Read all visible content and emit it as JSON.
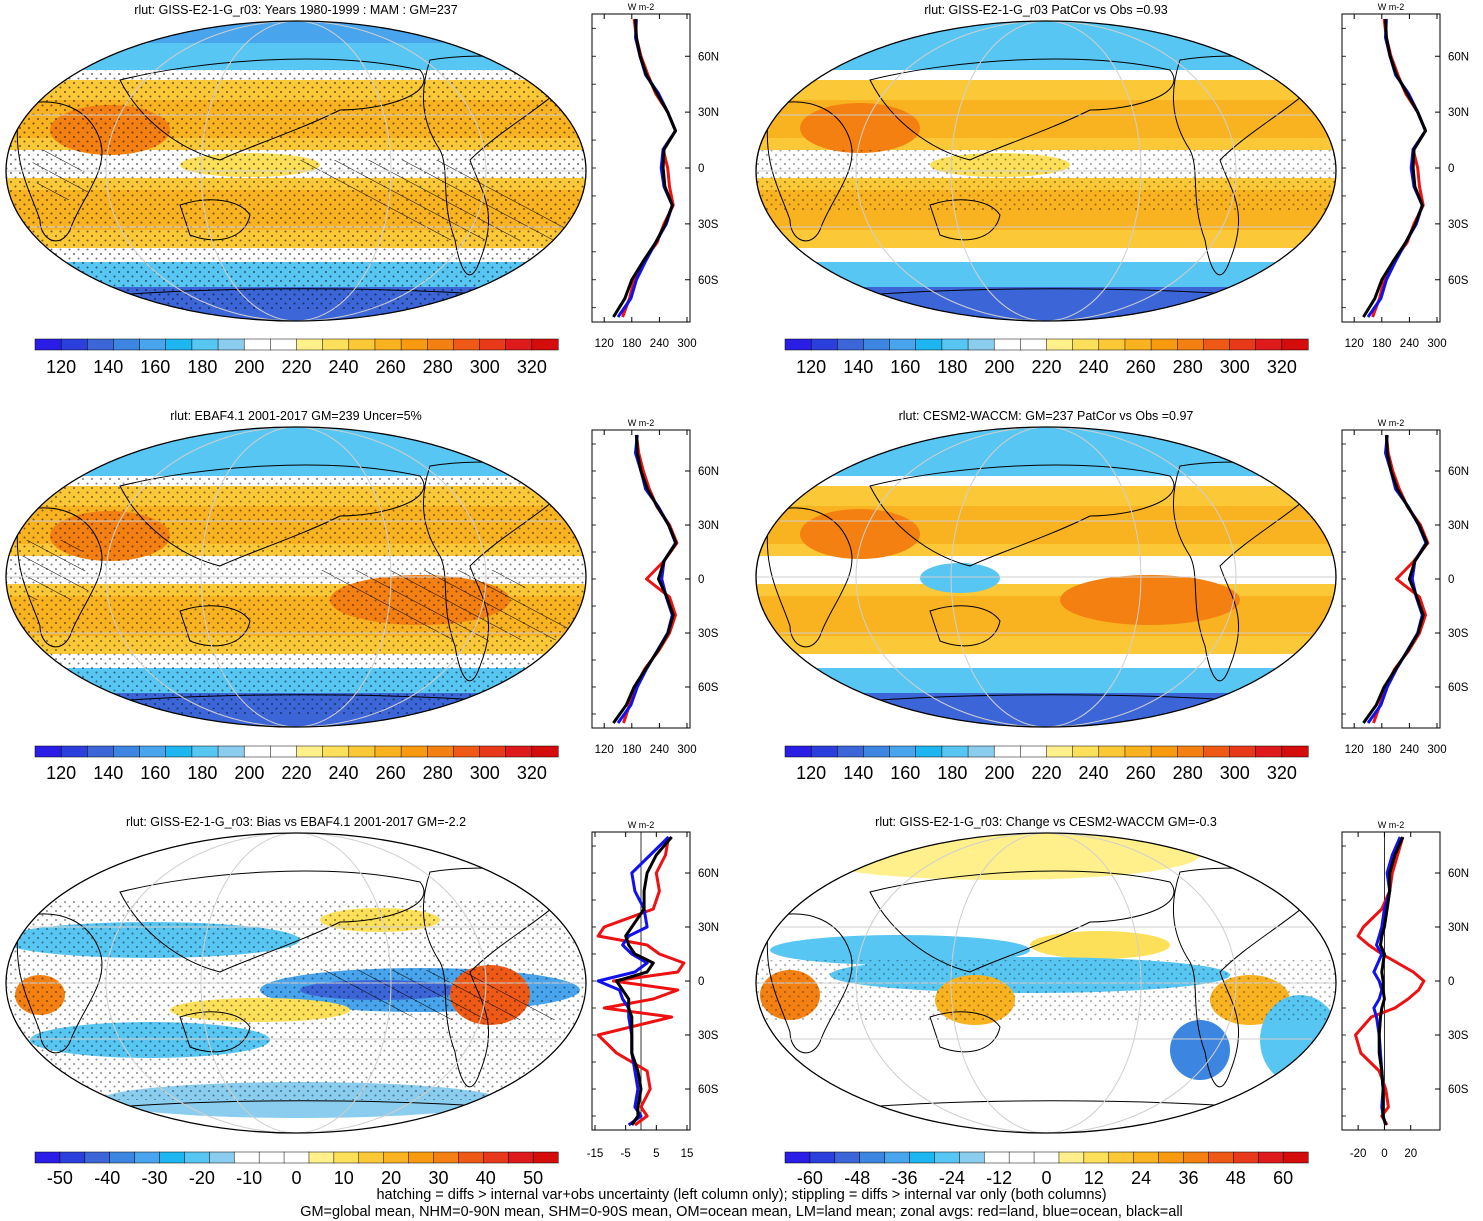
{
  "palettes": {
    "abs": [
      "#2a1ee6",
      "#2a3fdc",
      "#3c66d8",
      "#3c86e2",
      "#48a4ec",
      "#1eb6f0",
      "#58c6f2",
      "#8acdee",
      "#ffffff",
      "#ffffff",
      "#fff08c",
      "#fde05a",
      "#fbc837",
      "#f9b220",
      "#f79a0f",
      "#f38010",
      "#ee5a16",
      "#e83a1a",
      "#de1a1c",
      "#d40c0c"
    ],
    "diff": [
      "#2a1ee6",
      "#2a3fdc",
      "#3c66d8",
      "#3c86e2",
      "#48a4ec",
      "#1eb6f0",
      "#58c6f2",
      "#8acdee",
      "#ffffff",
      "#ffffff",
      "#ffffff",
      "#fff08c",
      "#fde05a",
      "#fbc837",
      "#f9b220",
      "#f79a0f",
      "#f38010",
      "#ee5a16",
      "#e83a1a",
      "#de1a1c",
      "#d40c0c"
    ]
  },
  "line_colors": {
    "land": "#ee1111",
    "ocean": "#1111ee",
    "all": "#000000"
  },
  "panels": [
    {
      "id": "p1",
      "title": "rlut: GISS-E2-1-G_r03: Years 1980-1999 : MAM : GM=237",
      "field": "abs",
      "palette": "abs",
      "colorbar_labels": [
        "120",
        "140",
        "160",
        "180",
        "200",
        "220",
        "240",
        "260",
        "280",
        "300",
        "320"
      ],
      "zonal_axis": {
        "unit": "W m-2",
        "ticks": [
          "120",
          "180",
          "240",
          "300"
        ],
        "range": [
          100,
          300
        ],
        "zero_line": false,
        "lat_labels": [
          "60N",
          "30N",
          "0",
          "30S",
          "60S"
        ]
      },
      "chart_data": {
        "type": "line",
        "x": [
          -80,
          -70,
          -60,
          -50,
          -40,
          -30,
          -20,
          -10,
          0,
          10,
          20,
          30,
          40,
          50,
          60,
          70,
          80
        ],
        "series": [
          {
            "name": "red=land",
            "values": [
              160,
              175,
              185,
              205,
              235,
              250,
              270,
              262,
              258,
              248,
              275,
              258,
              232,
              215,
              200,
              190,
              185
            ]
          },
          {
            "name": "blue=ocean",
            "values": [
              150,
              178,
              190,
              210,
              232,
              255,
              268,
              250,
              244,
              248,
              275,
              258,
              238,
              210,
              198,
              188,
              190
            ]
          },
          {
            "name": "black=all",
            "values": [
              140,
              165,
              180,
              205,
              232,
              253,
              268,
              252,
              248,
              250,
              275,
              258,
              235,
              212,
              198,
              190,
              188
            ]
          }
        ]
      }
    },
    {
      "id": "p2",
      "title": "rlut: GISS-E2-1-G_r03 PatCor vs Obs =0.93",
      "field": "abs",
      "palette": "abs",
      "colorbar_labels": [
        "120",
        "140",
        "160",
        "180",
        "200",
        "220",
        "240",
        "260",
        "280",
        "300",
        "320"
      ],
      "zonal_axis": {
        "unit": "W m-2",
        "ticks": [
          "120",
          "180",
          "240",
          "300"
        ],
        "range": [
          100,
          300
        ],
        "zero_line": false,
        "lat_labels": [
          "60N",
          "30N",
          "0",
          "30S",
          "60S"
        ]
      },
      "chart_data": {
        "type": "line",
        "x": [
          -80,
          -70,
          -60,
          -50,
          -40,
          -30,
          -20,
          -10,
          0,
          10,
          20,
          30,
          40,
          50,
          60,
          70,
          80
        ],
        "series": [
          {
            "name": "red=land",
            "values": [
              160,
              175,
              185,
              205,
              235,
              250,
              270,
              262,
              258,
              248,
              275,
              258,
              232,
              215,
              200,
              190,
              185
            ]
          },
          {
            "name": "blue=ocean",
            "values": [
              150,
              178,
              190,
              210,
              232,
              255,
              268,
              250,
              244,
              248,
              275,
              258,
              238,
              210,
              198,
              188,
              190
            ]
          },
          {
            "name": "black=all",
            "values": [
              140,
              165,
              180,
              205,
              232,
              253,
              268,
              252,
              248,
              250,
              275,
              258,
              235,
              212,
              198,
              190,
              188
            ]
          }
        ]
      }
    },
    {
      "id": "p3",
      "title": "rlut: EBAF4.1 2001-2017 GM=239 Uncer=5%",
      "field": "abs",
      "palette": "abs",
      "colorbar_labels": [
        "120",
        "140",
        "160",
        "180",
        "200",
        "220",
        "240",
        "260",
        "280",
        "300",
        "320"
      ],
      "zonal_axis": {
        "unit": "W m-2",
        "ticks": [
          "120",
          "180",
          "240",
          "300"
        ],
        "range": [
          100,
          300
        ],
        "zero_line": false,
        "lat_labels": [
          "60N",
          "30N",
          "0",
          "30S",
          "60S"
        ]
      },
      "chart_data": {
        "type": "line",
        "x": [
          -80,
          -70,
          -60,
          -50,
          -40,
          -30,
          -20,
          -10,
          0,
          10,
          20,
          30,
          40,
          50,
          60,
          70,
          80
        ],
        "series": [
          {
            "name": "red=land",
            "values": [
              162,
              175,
              188,
              208,
              238,
              262,
              275,
              262,
              212,
              250,
              278,
              262,
              235,
              218,
              205,
              195,
              190
            ]
          },
          {
            "name": "blue=ocean",
            "values": [
              150,
              178,
              192,
              212,
              235,
              258,
              268,
              255,
              245,
              250,
              275,
              260,
              238,
              210,
              200,
              188,
              192
            ]
          },
          {
            "name": "black=all",
            "values": [
              140,
              168,
              185,
              210,
              236,
              259,
              270,
              256,
              238,
              250,
              276,
              260,
              236,
              214,
              200,
              192,
              190
            ]
          }
        ]
      }
    },
    {
      "id": "p4",
      "title": "rlut: CESM2-WACCM: GM=237 PatCor vs Obs =0.97",
      "field": "abs",
      "palette": "abs",
      "colorbar_labels": [
        "120",
        "140",
        "160",
        "180",
        "200",
        "220",
        "240",
        "260",
        "280",
        "300",
        "320"
      ],
      "zonal_axis": {
        "unit": "W m-2",
        "ticks": [
          "120",
          "180",
          "240",
          "300"
        ],
        "range": [
          100,
          300
        ],
        "zero_line": false,
        "lat_labels": [
          "60N",
          "30N",
          "0",
          "30S",
          "60S"
        ]
      },
      "chart_data": {
        "type": "line",
        "x": [
          -80,
          -70,
          -60,
          -50,
          -40,
          -30,
          -20,
          -10,
          0,
          10,
          20,
          30,
          40,
          50,
          60,
          70,
          80
        ],
        "series": [
          {
            "name": "red=land",
            "values": [
              162,
              176,
              188,
              208,
              238,
              262,
              275,
              262,
              212,
              250,
              280,
              264,
              236,
              218,
              204,
              194,
              190
            ]
          },
          {
            "name": "blue=ocean",
            "values": [
              150,
              178,
              192,
              212,
              235,
              258,
              268,
              255,
              246,
              252,
              276,
              260,
              238,
              210,
              200,
              188,
              192
            ]
          },
          {
            "name": "black=all",
            "values": [
              140,
              168,
              185,
              210,
              236,
              259,
              270,
              256,
              240,
              252,
              278,
              261,
              237,
              214,
              200,
              192,
              190
            ]
          }
        ]
      }
    },
    {
      "id": "p5",
      "title": "rlut: GISS-E2-1-G_r03: Bias vs EBAF4.1 2001-2017 GM=-2.2",
      "field": "bias",
      "palette": "diff",
      "colorbar_labels": [
        "-50",
        "-40",
        "-30",
        "-20",
        "-10",
        "0",
        "10",
        "20",
        "30",
        "40",
        "50"
      ],
      "zonal_axis": {
        "unit": "W m-2",
        "ticks": [
          "-15",
          "-5",
          "5",
          "15"
        ],
        "range": [
          -15,
          15
        ],
        "zero_line": true,
        "lat_labels": [
          "60N",
          "30N",
          "0",
          "30S",
          "60S"
        ]
      },
      "chart_data": {
        "type": "line",
        "x": [
          -80,
          -75,
          -70,
          -60,
          -50,
          -40,
          -30,
          -20,
          -15,
          -10,
          -5,
          0,
          5,
          10,
          15,
          20,
          25,
          30,
          40,
          50,
          60,
          70,
          80
        ],
        "series": [
          {
            "name": "red=land",
            "values": [
              -2,
              2,
              0,
              3,
              2,
              -8,
              -14,
              10,
              -12,
              4,
              12,
              -9,
              12,
              14,
              6,
              2,
              -14,
              -12,
              4,
              6,
              5,
              8,
              9
            ]
          },
          {
            "name": "blue=ocean",
            "values": [
              -4,
              0,
              -2,
              -1,
              -2,
              -3,
              -3,
              -4,
              -4,
              -6,
              -7,
              -14,
              -2,
              2,
              -3,
              -6,
              -4,
              2,
              1,
              -2,
              -3,
              3,
              9
            ]
          },
          {
            "name": "black=all",
            "values": [
              -3,
              -1,
              -1,
              0,
              -1,
              -3,
              -3,
              -3,
              -4,
              -4,
              -6,
              -8,
              2,
              4,
              -2,
              -4,
              -5,
              -3,
              1,
              1,
              2,
              5,
              10
            ]
          }
        ]
      }
    },
    {
      "id": "p6",
      "title": "rlut: GISS-E2-1-G_r03: Change vs CESM2-WACCM GM=-0.3",
      "field": "change",
      "palette": "diff",
      "colorbar_labels": [
        "-60",
        "-48",
        "-36",
        "-24",
        "-12",
        "0",
        "12",
        "24",
        "36",
        "48",
        "60"
      ],
      "zonal_axis": {
        "unit": "W m-2",
        "ticks": [
          "-20",
          "0",
          "20"
        ],
        "range": [
          -30,
          40
        ],
        "zero_line": true,
        "lat_labels": [
          "60N",
          "30N",
          "0",
          "30S",
          "60S"
        ]
      },
      "chart_data": {
        "type": "line",
        "x": [
          -80,
          -75,
          -70,
          -60,
          -50,
          -40,
          -30,
          -20,
          -15,
          -10,
          -5,
          0,
          5,
          10,
          15,
          20,
          25,
          30,
          40,
          50,
          60,
          70,
          80
        ],
        "series": [
          {
            "name": "red=land",
            "values": [
              2,
              -2,
              3,
              1,
              -4,
              -18,
              -22,
              -10,
              8,
              18,
              26,
              30,
              22,
              10,
              -2,
              -12,
              -20,
              -16,
              -2,
              4,
              6,
              10,
              14
            ]
          },
          {
            "name": "blue=ocean",
            "values": [
              1,
              -1,
              -2,
              -1,
              -2,
              -3,
              -4,
              -6,
              -8,
              -4,
              -2,
              -4,
              -8,
              -5,
              -2,
              -6,
              -4,
              -2,
              0,
              4,
              2,
              6,
              12
            ]
          },
          {
            "name": "black=all",
            "values": [
              1,
              -1,
              -1,
              -1,
              -2,
              -4,
              -4,
              -3,
              -2,
              0,
              -1,
              -1,
              -2,
              -1,
              0,
              -3,
              -2,
              0,
              2,
              4,
              4,
              8,
              14
            ]
          }
        ]
      }
    }
  ],
  "footer": {
    "line1": "hatching = diffs > internal var+obs uncertainty (left column only); stippling = diffs > internal var only (both columns)",
    "line2": "GM=global mean, NHM=0-90N mean, SHM=0-90S mean, OM=ocean mean, LM=land mean; zonal avgs: red=land, blue=ocean, black=all"
  }
}
